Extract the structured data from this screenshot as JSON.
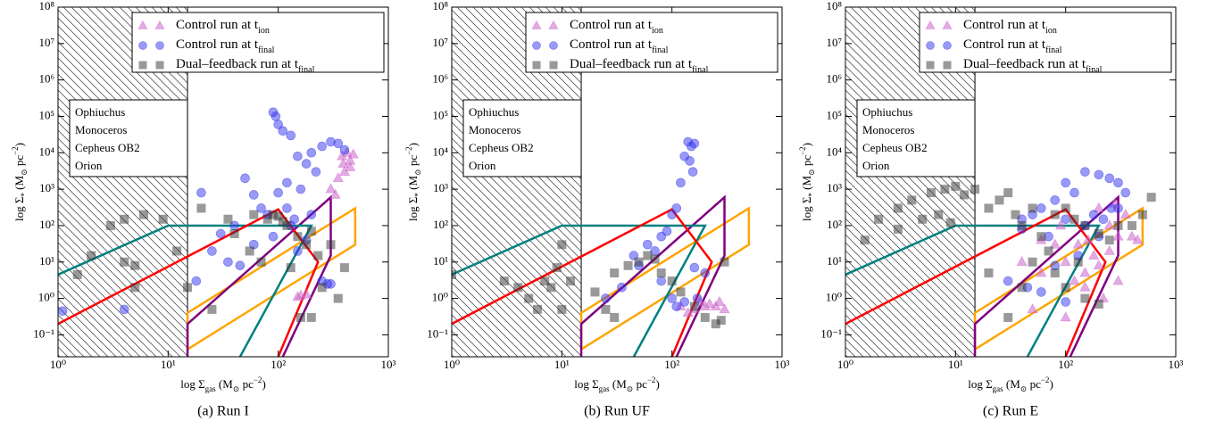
{
  "chart_data": [
    {
      "type": "scatter",
      "caption": "(a) Run I",
      "xlabel": [
        {
          "text": "log Σ"
        },
        {
          "text": "gas",
          "pos": "sub"
        },
        {
          "text": " (M"
        },
        {
          "text": "⊙",
          "pos": "sub"
        },
        {
          "text": " pc"
        },
        {
          "text": "−2",
          "pos": "sup"
        },
        {
          "text": ")"
        }
      ],
      "ylabel": [
        {
          "text": "log Σ"
        },
        {
          "text": "*",
          "pos": "sub"
        },
        {
          "text": " (M"
        },
        {
          "text": "⊙",
          "pos": "sub"
        },
        {
          "text": " pc"
        },
        {
          "text": "−2",
          "pos": "sup"
        },
        {
          "text": ")"
        }
      ],
      "log_x": true,
      "log_y": true,
      "xlim": [
        1,
        1000
      ],
      "ylim": [
        0.025,
        100000000
      ],
      "xticks": [
        {
          "value": 1,
          "label": "10⁰"
        },
        {
          "value": 10,
          "label": "10¹"
        },
        {
          "value": 100,
          "label": "10²"
        },
        {
          "value": 1000,
          "label": "10³"
        }
      ],
      "yticks": [
        {
          "value": 0.1,
          "label": "10⁻¹"
        },
        {
          "value": 1,
          "label": "10⁰"
        },
        {
          "value": 10,
          "label": "10¹"
        },
        {
          "value": 100,
          "label": "10²"
        },
        {
          "value": 1000,
          "label": "10³"
        },
        {
          "value": 10000,
          "label": "10⁴"
        },
        {
          "value": 100000,
          "label": "10⁵"
        },
        {
          "value": 1000000,
          "label": "10⁶"
        },
        {
          "value": 10000000,
          "label": "10⁷"
        },
        {
          "value": 100000000,
          "label": "10⁸"
        }
      ],
      "excluded_x_max": 15,
      "series": [
        {
          "name": "Control run at t",
          "name_sub": "ion",
          "marker": "triangle",
          "color": "#cc66cc",
          "x": [
            380,
            420,
            450,
            400,
            350,
            300,
            450,
            480,
            330,
            390,
            160,
            180,
            150
          ],
          "y": [
            8000,
            10000,
            6000,
            3000,
            2000,
            1000,
            4000,
            9000,
            700,
            5000,
            1.2,
            1.3,
            1.1
          ]
        },
        {
          "name": "Control run at t",
          "name_sub": "final",
          "marker": "circle",
          "color": "#3333ee",
          "x": [
            90,
            95,
            100,
            110,
            130,
            150,
            200,
            250,
            300,
            350,
            400,
            180,
            220,
            160,
            120,
            60,
            50,
            70,
            80,
            40,
            30,
            25,
            35,
            45,
            60,
            90,
            120,
            140,
            200,
            250,
            280,
            300,
            150,
            20,
            18,
            100,
            130,
            180,
            4,
            1.1
          ],
          "y": [
            130000,
            100000,
            60000,
            40000,
            30000,
            8000,
            10000,
            15000,
            20000,
            18000,
            12000,
            5000,
            3000,
            1000,
            1500,
            700,
            2000,
            300,
            200,
            100,
            60,
            20,
            10,
            8,
            30,
            50,
            300,
            150,
            200,
            3,
            2.5,
            2.5,
            20,
            800,
            3,
            800,
            100,
            40,
            0.5,
            0.45
          ]
        },
        {
          "name": "Dual–feedback run at t",
          "name_sub": "final",
          "marker": "square",
          "color": "#333333",
          "x": [
            1.5,
            2,
            4,
            5,
            5,
            3,
            4,
            6,
            9,
            12,
            20,
            35,
            40,
            55,
            60,
            70,
            80,
            90,
            100,
            110,
            120,
            150,
            180,
            200,
            230,
            250,
            300,
            350,
            400,
            130,
            160,
            200,
            15,
            25
          ],
          "y": [
            4.5,
            15,
            10,
            8,
            2,
            100,
            150,
            200,
            150,
            20,
            300,
            150,
            60,
            20,
            200,
            10,
            150,
            200,
            180,
            130,
            100,
            50,
            30,
            70,
            15,
            2,
            30,
            1,
            7,
            7,
            0.3,
            0.3,
            2,
            0.5
          ]
        }
      ],
      "regions": [
        {
          "name": "Ophiuchus",
          "color": "#ffa500",
          "x": [
            15,
            15,
            500,
            500,
            15
          ],
          "y": [
            0.04,
            0.4,
            300,
            30,
            0.04
          ]
        },
        {
          "name": "Monoceros",
          "color": "#800080",
          "x": [
            15,
            15,
            300,
            300,
            110
          ],
          "y": [
            0.025,
            0.2,
            600,
            15,
            0.025
          ]
        },
        {
          "name": "Cepheus OB2",
          "color": "#008080",
          "x": [
            1,
            10,
            200,
            45
          ],
          "y": [
            4.5,
            100,
            100,
            0.025
          ]
        },
        {
          "name": "Orion",
          "color": "#ff0000",
          "x": [
            1,
            100,
            230,
            100
          ],
          "y": [
            0.2,
            280,
            10,
            0.025
          ]
        }
      ]
    },
    {
      "type": "scatter",
      "caption": "(b) Run UF",
      "xlabel": [
        {
          "text": "log Σ"
        },
        {
          "text": "gas",
          "pos": "sub"
        },
        {
          "text": " (M"
        },
        {
          "text": "⊙",
          "pos": "sub"
        },
        {
          "text": " pc"
        },
        {
          "text": "−2",
          "pos": "sup"
        },
        {
          "text": ")"
        }
      ],
      "ylabel": [
        {
          "text": "log Σ"
        },
        {
          "text": "*",
          "pos": "sub"
        },
        {
          "text": " (M"
        },
        {
          "text": "⊙",
          "pos": "sub"
        },
        {
          "text": " pc"
        },
        {
          "text": "−2",
          "pos": "sup"
        },
        {
          "text": ")"
        }
      ],
      "log_x": true,
      "log_y": true,
      "xlim": [
        1,
        1000
      ],
      "ylim": [
        0.025,
        100000000
      ],
      "xticks": [
        {
          "value": 1,
          "label": "10⁰"
        },
        {
          "value": 10,
          "label": "10¹"
        },
        {
          "value": 100,
          "label": "10²"
        },
        {
          "value": 1000,
          "label": "10³"
        }
      ],
      "yticks": [
        {
          "value": 0.1,
          "label": "10⁻¹"
        },
        {
          "value": 1,
          "label": "10⁰"
        },
        {
          "value": 10,
          "label": "10¹"
        },
        {
          "value": 100,
          "label": "10²"
        },
        {
          "value": 1000,
          "label": "10³"
        },
        {
          "value": 10000,
          "label": "10⁴"
        },
        {
          "value": 100000,
          "label": "10⁵"
        },
        {
          "value": 1000000,
          "label": "10⁶"
        },
        {
          "value": 10000000,
          "label": "10⁷"
        },
        {
          "value": 100000000,
          "label": "10⁸"
        }
      ],
      "excluded_x_max": 15,
      "series": [
        {
          "name": "Control run at t",
          "name_sub": "ion",
          "marker": "triangle",
          "color": "#cc66cc",
          "x": [
            160,
            180,
            200,
            220,
            250,
            270,
            300,
            120,
            140
          ],
          "y": [
            0.5,
            0.8,
            0.6,
            0.7,
            0.6,
            0.8,
            0.5,
            0.6,
            0.4
          ]
        },
        {
          "name": "Control run at t",
          "name_sub": "final",
          "marker": "circle",
          "color": "#3333ee",
          "x": [
            140,
            150,
            160,
            130,
            145,
            155,
            120,
            110,
            100,
            90,
            80,
            60,
            50,
            45,
            70,
            80,
            100,
            110,
            130,
            160,
            200,
            170,
            35,
            25
          ],
          "y": [
            20000,
            15000,
            18000,
            8000,
            6000,
            3000,
            1500,
            300,
            200,
            70,
            50,
            30,
            8,
            15,
            20,
            3,
            1,
            0.6,
            0.8,
            7,
            5,
            1,
            2,
            1
          ]
        },
        {
          "name": "Dual–feedback run at t",
          "name_sub": "final",
          "marker": "square",
          "color": "#333333",
          "x": [
            1,
            3,
            4,
            5,
            6,
            7,
            8,
            9,
            10,
            12,
            10,
            20,
            25,
            30,
            40,
            50,
            60,
            70,
            80,
            100,
            120,
            160,
            200,
            250,
            280,
            300,
            30
          ],
          "y": [
            4.5,
            3,
            2,
            1,
            0.5,
            3,
            2,
            7,
            30,
            3,
            0.5,
            1.5,
            0.5,
            5,
            8,
            10,
            15,
            12,
            5,
            3,
            1.5,
            0.6,
            0.3,
            0.2,
            0.25,
            10,
            0.3
          ]
        }
      ],
      "regions": [
        {
          "name": "Ophiuchus",
          "color": "#ffa500",
          "x": [
            15,
            15,
            500,
            500,
            15
          ],
          "y": [
            0.04,
            0.4,
            300,
            30,
            0.04
          ]
        },
        {
          "name": "Monoceros",
          "color": "#800080",
          "x": [
            15,
            15,
            300,
            300,
            110
          ],
          "y": [
            0.025,
            0.2,
            600,
            15,
            0.025
          ]
        },
        {
          "name": "Cepheus OB2",
          "color": "#008080",
          "x": [
            1,
            10,
            200,
            45
          ],
          "y": [
            4.5,
            100,
            100,
            0.025
          ]
        },
        {
          "name": "Orion",
          "color": "#ff0000",
          "x": [
            1,
            100,
            230,
            100
          ],
          "y": [
            0.2,
            280,
            10,
            0.025
          ]
        }
      ]
    },
    {
      "type": "scatter",
      "caption": "(c) Run E",
      "xlabel": [
        {
          "text": "log Σ"
        },
        {
          "text": "gas",
          "pos": "sub"
        },
        {
          "text": " (M"
        },
        {
          "text": "⊙",
          "pos": "sub"
        },
        {
          "text": " pc"
        },
        {
          "text": "−2",
          "pos": "sup"
        },
        {
          "text": ")"
        }
      ],
      "ylabel": [
        {
          "text": "log Σ"
        },
        {
          "text": "*",
          "pos": "sub"
        },
        {
          "text": " (M"
        },
        {
          "text": "⊙",
          "pos": "sub"
        },
        {
          "text": " pc"
        },
        {
          "text": "−2",
          "pos": "sup"
        },
        {
          "text": ")"
        }
      ],
      "log_x": true,
      "log_y": true,
      "xlim": [
        1,
        1000
      ],
      "ylim": [
        0.025,
        100000000
      ],
      "xticks": [
        {
          "value": 1,
          "label": "10⁰"
        },
        {
          "value": 10,
          "label": "10¹"
        },
        {
          "value": 100,
          "label": "10²"
        },
        {
          "value": 1000,
          "label": "10³"
        }
      ],
      "yticks": [
        {
          "value": 0.1,
          "label": "10⁻¹"
        },
        {
          "value": 1,
          "label": "10⁰"
        },
        {
          "value": 10,
          "label": "10¹"
        },
        {
          "value": 100,
          "label": "10²"
        },
        {
          "value": 1000,
          "label": "10³"
        },
        {
          "value": 10000,
          "label": "10⁴"
        },
        {
          "value": 100000,
          "label": "10⁵"
        },
        {
          "value": 1000000,
          "label": "10⁶"
        },
        {
          "value": 10000000,
          "label": "10⁷"
        },
        {
          "value": 100000000,
          "label": "10⁸"
        }
      ],
      "excluded_x_max": 15,
      "series": [
        {
          "name": "Control run at t",
          "name_sub": "ion",
          "marker": "triangle",
          "color": "#cc66cc",
          "x": [
            80,
            100,
            150,
            200,
            250,
            300,
            400,
            450,
            350,
            280,
            120,
            60,
            40,
            50,
            100,
            150,
            220,
            300,
            180,
            130,
            90,
            250,
            200,
            160,
            60
          ],
          "y": [
            30,
            10,
            5,
            8,
            20,
            50,
            50,
            40,
            200,
            400,
            3,
            5,
            10,
            0.5,
            0.3,
            2,
            1,
            3,
            15,
            30,
            100,
            100,
            300,
            40,
            40
          ]
        },
        {
          "name": "Control run at t",
          "name_sub": "final",
          "marker": "circle",
          "color": "#3333ee",
          "x": [
            150,
            200,
            250,
            300,
            100,
            120,
            80,
            60,
            40,
            50,
            180,
            220,
            260,
            300,
            350,
            150,
            100,
            70,
            40,
            200,
            30,
            45,
            60,
            100,
            80,
            130
          ],
          "y": [
            3000,
            2500,
            2000,
            1500,
            1500,
            800,
            500,
            300,
            150,
            200,
            200,
            150,
            300,
            300,
            800,
            100,
            150,
            50,
            80,
            50,
            3,
            2,
            1.5,
            0.8,
            8,
            15
          ]
        },
        {
          "name": "Dual–feedback run at t",
          "name_sub": "final",
          "marker": "square",
          "color": "#333333",
          "x": [
            1.5,
            2,
            3,
            3,
            4,
            5,
            6,
            7,
            8,
            10,
            12,
            9,
            15,
            20,
            25,
            30,
            35,
            40,
            50,
            60,
            70,
            80,
            100,
            120,
            150,
            200,
            250,
            300,
            400,
            500,
            600,
            80,
            100,
            150,
            200,
            30,
            50,
            130,
            40,
            20
          ],
          "y": [
            40,
            150,
            80,
            300,
            500,
            150,
            800,
            200,
            1000,
            1200,
            700,
            120,
            1000,
            300,
            500,
            800,
            200,
            100,
            300,
            50,
            20,
            200,
            300,
            150,
            100,
            60,
            40,
            100,
            100,
            200,
            600,
            5,
            2,
            1,
            0.7,
            0.3,
            10,
            10,
            2,
            5
          ]
        }
      ],
      "regions": [
        {
          "name": "Ophiuchus",
          "color": "#ffa500",
          "x": [
            15,
            15,
            500,
            500,
            15
          ],
          "y": [
            0.04,
            0.4,
            300,
            30,
            0.04
          ]
        },
        {
          "name": "Monoceros",
          "color": "#800080",
          "x": [
            15,
            15,
            300,
            300,
            110
          ],
          "y": [
            0.025,
            0.2,
            600,
            15,
            0.025
          ]
        },
        {
          "name": "Cepheus OB2",
          "color": "#008080",
          "x": [
            1,
            10,
            200,
            45
          ],
          "y": [
            4.5,
            100,
            100,
            0.025
          ]
        },
        {
          "name": "Orion",
          "color": "#ff0000",
          "x": [
            1,
            100,
            230,
            100
          ],
          "y": [
            0.2,
            280,
            10,
            0.025
          ]
        }
      ]
    }
  ]
}
